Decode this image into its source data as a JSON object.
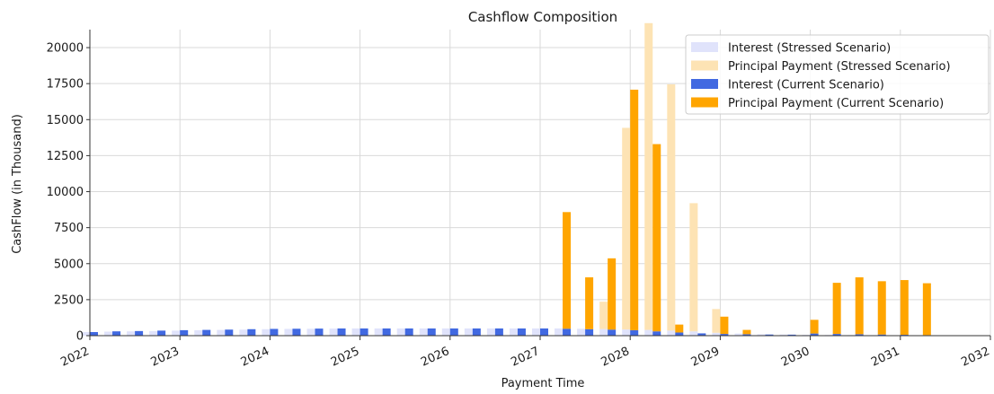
{
  "chart_data": {
    "type": "bar",
    "title": "Cashflow Composition",
    "xlabel": "Payment Time",
    "ylabel": "CashFlow (in Thousand)",
    "xlim": [
      2022,
      2032
    ],
    "ylim": [
      0,
      21250
    ],
    "grid": true,
    "legend_placement": "top-right",
    "x_ticks": [
      "2022",
      "2023",
      "2024",
      "2025",
      "2026",
      "2027",
      "2028",
      "2029",
      "2030",
      "2031",
      "2032"
    ],
    "y_ticks": [
      "0",
      "2500",
      "5000",
      "7500",
      "10000",
      "12500",
      "15000",
      "17500",
      "20000"
    ],
    "x": [
      2022.0,
      2022.25,
      2022.5,
      2022.75,
      2023.0,
      2023.25,
      2023.5,
      2023.75,
      2024.0,
      2024.25,
      2024.5,
      2024.75,
      2025.0,
      2025.25,
      2025.5,
      2025.75,
      2026.0,
      2026.25,
      2026.5,
      2026.75,
      2027.0,
      2027.25,
      2027.5,
      2027.75,
      2028.0,
      2028.25,
      2028.5,
      2028.75,
      2029.0,
      2029.25,
      2029.5,
      2029.75,
      2030.0,
      2030.25,
      2030.5,
      2030.75,
      2031.0,
      2031.25
    ],
    "series": [
      {
        "name": "Interest (Stressed Scenario)",
        "color": "#e0e3fb",
        "values": [
          250,
          280,
          300,
          320,
          350,
          380,
          400,
          420,
          450,
          470,
          480,
          490,
          500,
          500,
          500,
          500,
          500,
          500,
          500,
          500,
          500,
          500,
          480,
          460,
          430,
          400,
          350,
          300,
          200,
          150,
          100,
          80,
          60,
          50,
          40,
          30,
          20,
          10
        ]
      },
      {
        "name": "Principal Payment (Stressed Scenario)",
        "color": "#fde3b4",
        "values": [
          0,
          0,
          0,
          0,
          0,
          0,
          0,
          0,
          0,
          0,
          0,
          0,
          0,
          0,
          0,
          0,
          0,
          0,
          0,
          0,
          0,
          0,
          0,
          1900,
          14000,
          21300,
          17100,
          8900,
          1650,
          0,
          0,
          0,
          0,
          0,
          0,
          0,
          0,
          0
        ]
      },
      {
        "name": "Interest (Current Scenario)",
        "color": "#4169e1",
        "values": [
          250,
          300,
          320,
          350,
          380,
          400,
          420,
          450,
          470,
          480,
          490,
          500,
          500,
          500,
          500,
          500,
          500,
          500,
          500,
          500,
          500,
          480,
          450,
          420,
          380,
          300,
          220,
          160,
          120,
          100,
          80,
          70,
          150,
          120,
          100,
          80,
          60,
          40
        ]
      },
      {
        "name": "Principal Payment (Current Scenario)",
        "color": "#ffa500",
        "values": [
          0,
          0,
          0,
          0,
          0,
          0,
          0,
          0,
          0,
          0,
          0,
          0,
          0,
          0,
          0,
          0,
          0,
          0,
          0,
          0,
          0,
          8100,
          3600,
          4950,
          16700,
          13000,
          550,
          0,
          1200,
          300,
          0,
          0,
          950,
          3550,
          3950,
          3700,
          3800,
          3600
        ]
      }
    ]
  }
}
